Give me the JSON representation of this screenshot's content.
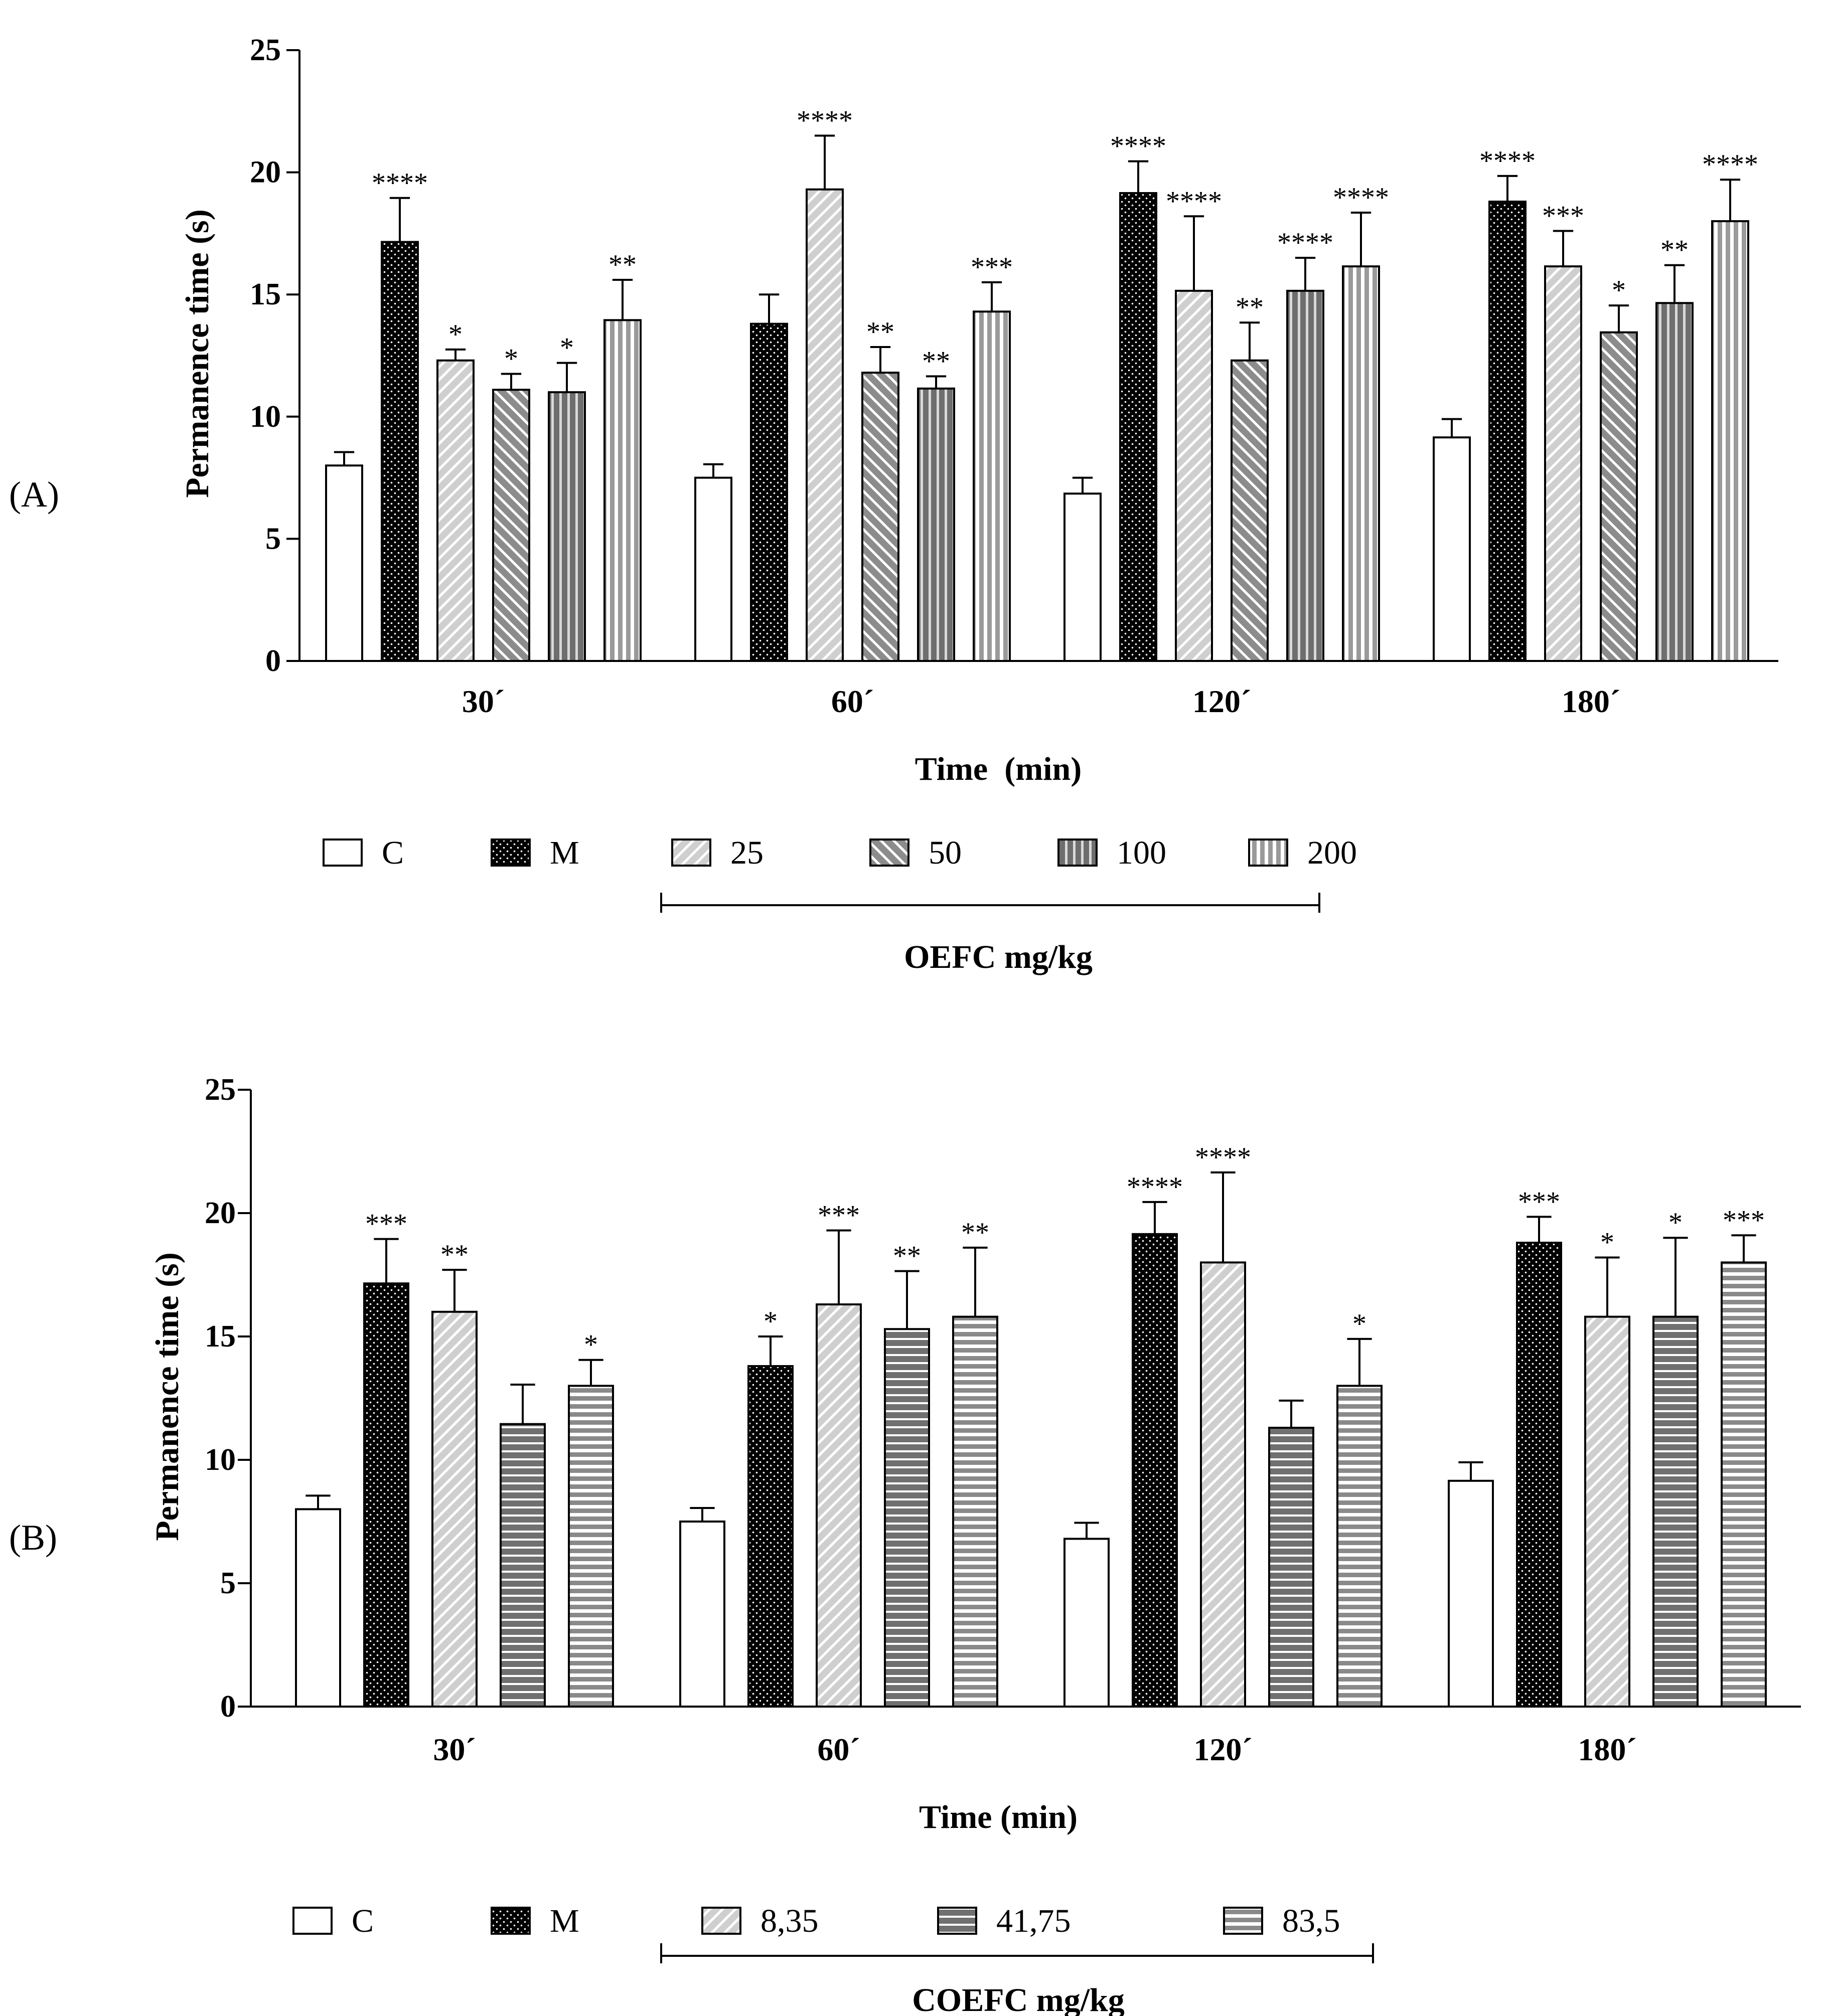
{
  "chart_data": [
    {
      "type": "bar",
      "panel_label": "(A)",
      "categories": [
        "30´",
        "60´",
        "120´",
        "180´"
      ],
      "xlabel": "Time  (min)",
      "ylabel": "Permanence time (s)",
      "ylim": [
        0,
        25
      ],
      "yticks": [
        "0",
        "5",
        "10",
        "15",
        "20",
        "25"
      ],
      "legend_group_label": "OEFC mg/kg",
      "series": [
        {
          "name": "C",
          "pattern": "white",
          "values": [
            8.0,
            7.5,
            6.85,
            9.15
          ],
          "errors": [
            0.55,
            0.55,
            0.65,
            0.75
          ],
          "sig": [
            "",
            "",
            "",
            ""
          ]
        },
        {
          "name": "M",
          "pattern": "dots",
          "values": [
            17.15,
            13.8,
            19.15,
            18.8
          ],
          "errors": [
            1.8,
            1.2,
            1.3,
            1.05
          ],
          "sig": [
            "****",
            "",
            "****",
            "****"
          ]
        },
        {
          "name": "25",
          "pattern": "diag-light",
          "values": [
            12.3,
            19.3,
            15.15,
            16.15
          ],
          "errors": [
            0.45,
            2.2,
            3.05,
            1.45
          ],
          "sig": [
            "*",
            "****",
            "****",
            "***"
          ]
        },
        {
          "name": "50",
          "pattern": "diag-dark",
          "values": [
            11.1,
            11.8,
            12.3,
            13.45
          ],
          "errors": [
            0.65,
            1.05,
            1.55,
            1.1
          ],
          "sig": [
            "*",
            "**",
            "**",
            "*"
          ]
        },
        {
          "name": "100",
          "pattern": "vert-dark",
          "values": [
            11.0,
            11.15,
            15.15,
            14.65
          ],
          "errors": [
            1.2,
            0.5,
            1.35,
            1.55
          ],
          "sig": [
            "*",
            "**",
            "****",
            "**"
          ]
        },
        {
          "name": "200",
          "pattern": "vert-light",
          "values": [
            13.95,
            14.3,
            16.15,
            18.0
          ],
          "errors": [
            1.65,
            1.2,
            2.2,
            1.7
          ],
          "sig": [
            "**",
            "***",
            "****",
            "****"
          ]
        }
      ]
    },
    {
      "type": "bar",
      "panel_label": "(B)",
      "categories": [
        "30´",
        "60´",
        "120´",
        "180´"
      ],
      "xlabel": "Time (min)",
      "ylabel": "Permanence time (s)",
      "ylim": [
        0,
        25
      ],
      "yticks": [
        "0",
        "5",
        "10",
        "15",
        "20",
        "25"
      ],
      "legend_group_label": "COEFC mg/kg",
      "series": [
        {
          "name": "C",
          "pattern": "white",
          "values": [
            8.0,
            7.5,
            6.8,
            9.15
          ],
          "errors": [
            0.55,
            0.55,
            0.65,
            0.75
          ],
          "sig": [
            "",
            "",
            "",
            ""
          ]
        },
        {
          "name": "M",
          "pattern": "dots",
          "values": [
            17.15,
            13.8,
            19.15,
            18.8
          ],
          "errors": [
            1.8,
            1.2,
            1.3,
            1.05
          ],
          "sig": [
            "***",
            "*",
            "****",
            "***"
          ]
        },
        {
          "name": "8,35",
          "pattern": "diag-light",
          "values": [
            16.0,
            16.3,
            18.0,
            15.8
          ],
          "errors": [
            1.7,
            3.0,
            3.65,
            2.4
          ],
          "sig": [
            "**",
            "***",
            "****",
            "*"
          ]
        },
        {
          "name": "41,75",
          "pattern": "horiz-dark",
          "values": [
            11.45,
            15.3,
            11.3,
            15.8
          ],
          "errors": [
            1.6,
            2.35,
            1.1,
            3.2
          ],
          "sig": [
            "",
            "**",
            "",
            "*"
          ]
        },
        {
          "name": "83,5",
          "pattern": "horiz-light",
          "values": [
            13.0,
            15.8,
            13.0,
            18.0
          ],
          "errors": [
            1.05,
            2.8,
            1.9,
            1.1
          ],
          "sig": [
            "*",
            "**",
            "*",
            "***"
          ]
        }
      ]
    }
  ]
}
